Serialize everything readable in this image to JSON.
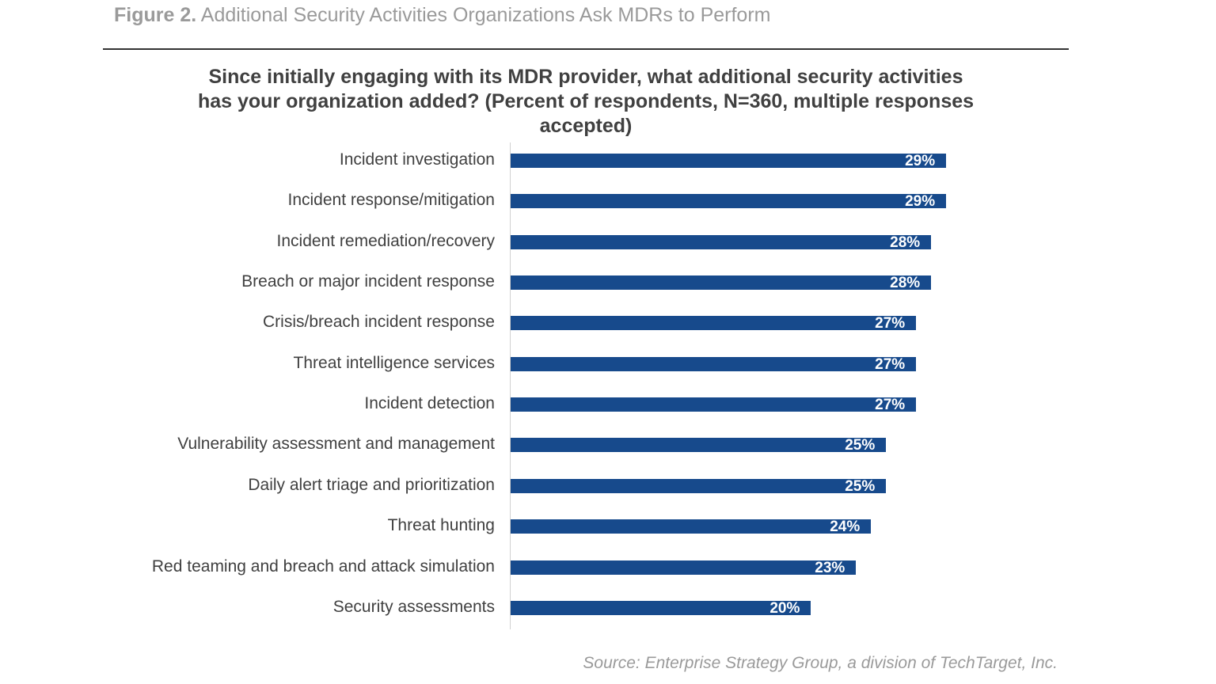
{
  "figure": {
    "label": "Figure 2.",
    "title": "Additional Security Activities Organizations Ask MDRs to Perform"
  },
  "chart_data": {
    "type": "bar",
    "orientation": "horizontal",
    "title": "Since initially engaging with its MDR provider, what additional security activities has your organization added? (Percent of respondents, N=360, multiple responses accepted)",
    "categories": [
      "Incident investigation",
      "Incident response/mitigation",
      "Incident remediation/recovery",
      "Breach or major incident response",
      "Crisis/breach incident response",
      "Threat intelligence services",
      "Incident detection",
      "Vulnerability assessment and management",
      "Daily alert triage and prioritization",
      "Threat hunting",
      "Red teaming and breach and attack simulation",
      "Security assessments"
    ],
    "values": [
      29,
      29,
      28,
      28,
      27,
      27,
      27,
      25,
      25,
      24,
      23,
      20
    ],
    "value_labels": [
      "29%",
      "29%",
      "28%",
      "28%",
      "27%",
      "27%",
      "27%",
      "25%",
      "25%",
      "24%",
      "23%",
      "20%"
    ],
    "bar_color": "#174a8c",
    "grid": false,
    "legend": "none"
  },
  "source": "Source: Enterprise Strategy Group, a division of TechTarget, Inc."
}
